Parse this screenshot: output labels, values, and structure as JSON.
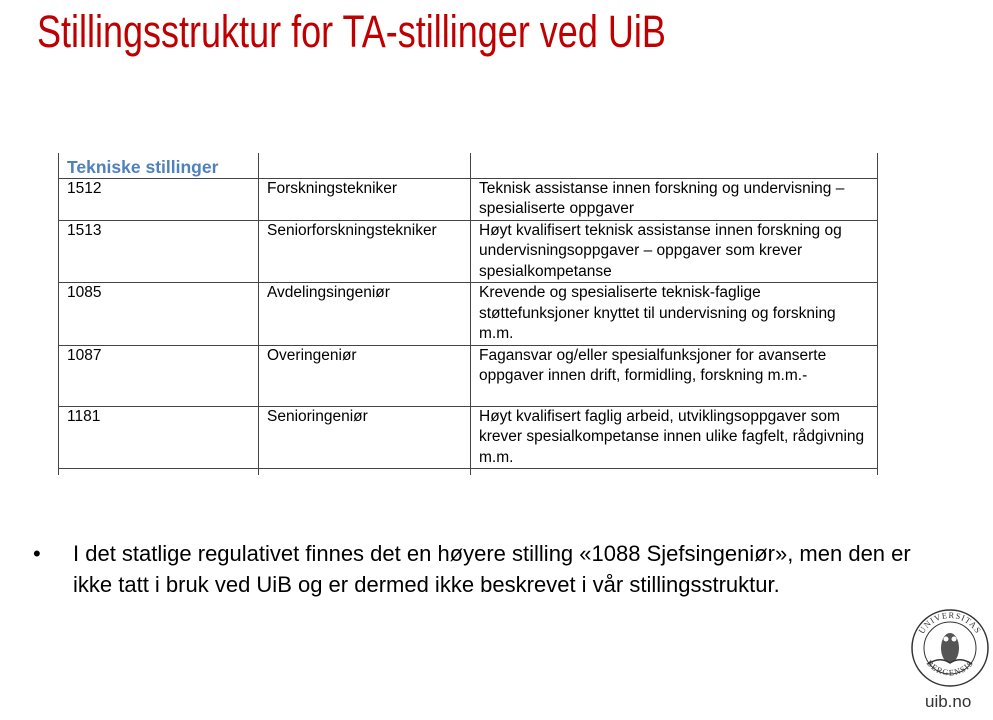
{
  "title": "Stillingsstruktur for TA-stillinger ved UiB",
  "table": {
    "header": "Tekniske stillinger",
    "rows": [
      {
        "code": "1512",
        "name": "Forskningstekniker",
        "desc": "Teknisk assistanse innen forskning og undervisning – spesialiserte oppgaver"
      },
      {
        "code": "1513",
        "name": "Seniorforskningstekniker",
        "desc": "Høyt kvalifisert teknisk assistanse innen forskning og undervisningsoppgaver – oppgaver som krever spesialkompetanse"
      },
      {
        "code": "1085",
        "name": "Avdelingsingeniør",
        "desc": "Krevende og spesialiserte teknisk-faglige støttefunksjoner knyttet til undervisning og forskning m.m."
      },
      {
        "code": "1087",
        "name": "Overingeniør",
        "desc": "Fagansvar og/eller spesialfunksjoner for avanserte oppgaver innen drift, formidling, forskning m.m.-"
      },
      {
        "code": "1181",
        "name": "Senioringeniør",
        "desc": "Høyt kvalifisert faglig arbeid, utviklingsoppgaver som krever spesialkompetanse innen ulike fagfelt, rådgivning m.m."
      }
    ]
  },
  "bullet": {
    "marker": "•",
    "text": "I det statlige regulativet finnes det en høyere stilling «1088 Sjefsingeniør», men den er ikke tatt i bruk ved UiB og er dermed ikke beskrevet i vår stillingsstruktur."
  },
  "logo": {
    "text_top": "UNIVERSITAS",
    "text_bottom": "BERGENSIS"
  },
  "footer_url": "uib.no",
  "colors": {
    "title": "#c00000",
    "table_header": "#4f81bd"
  }
}
